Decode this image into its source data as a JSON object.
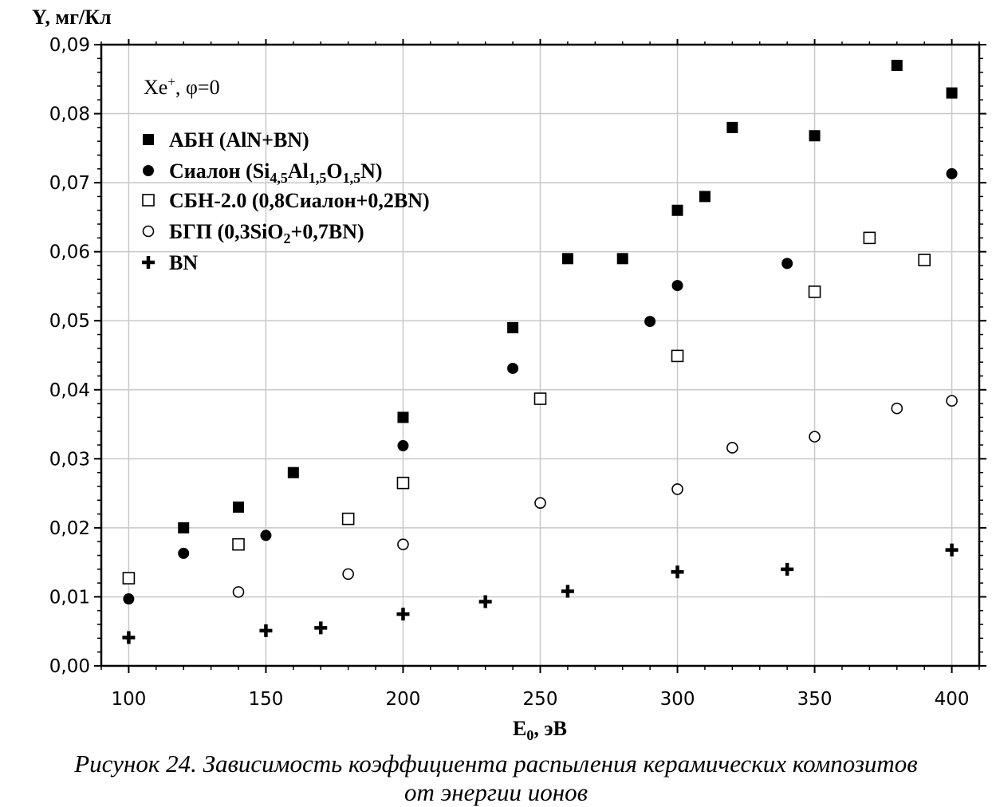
{
  "chart_data": {
    "type": "scatter",
    "ylabel": "Y, мг/Кл",
    "xlabel": "E0, эВ",
    "xlim": [
      90,
      410
    ],
    "ylim": [
      0,
      0.09
    ],
    "x_ticks": [
      100,
      150,
      200,
      250,
      300,
      350,
      400
    ],
    "x_tick_labels": [
      "100",
      "150",
      "200",
      "250",
      "300",
      "350",
      "400"
    ],
    "y_ticks": [
      0,
      0.01,
      0.02,
      0.03,
      0.04,
      0.05,
      0.06,
      0.07,
      0.08,
      0.09
    ],
    "y_tick_labels": [
      "0,00",
      "0,01",
      "0,02",
      "0,03",
      "0,04",
      "0,05",
      "0,06",
      "0,07",
      "0,08",
      "0,09"
    ],
    "grid": true,
    "legend_position": "top-left",
    "annotation": "Xe+, φ=0",
    "series": [
      {
        "name": "АБН (AlN+BN)",
        "marker": "filled-square",
        "x": [
          120,
          140,
          160,
          200,
          240,
          260,
          280,
          300,
          310,
          320,
          350,
          380,
          400
        ],
        "y": [
          0.02,
          0.023,
          0.028,
          0.036,
          0.049,
          0.059,
          0.059,
          0.066,
          0.068,
          0.078,
          0.0768,
          0.087,
          0.083
        ]
      },
      {
        "name": "Сиалон (Si4,5Al1,5O1,5N)",
        "marker": "filled-circle",
        "x": [
          100,
          120,
          150,
          200,
          240,
          290,
          300,
          340,
          400
        ],
        "y": [
          0.0097,
          0.0163,
          0.0189,
          0.0319,
          0.0431,
          0.0499,
          0.0551,
          0.0583,
          0.0713
        ]
      },
      {
        "name": "СБН-2.0 (0,8Сиалон+0,2BN)",
        "marker": "open-square",
        "x": [
          100,
          140,
          180,
          200,
          250,
          300,
          350,
          370,
          390
        ],
        "y": [
          0.0127,
          0.0176,
          0.0213,
          0.0265,
          0.0387,
          0.0449,
          0.0542,
          0.062,
          0.0588
        ]
      },
      {
        "name": "БГП (0,3SiO2+0,7BN)",
        "marker": "open-circle",
        "x": [
          140,
          180,
          200,
          250,
          300,
          320,
          350,
          380,
          400
        ],
        "y": [
          0.0107,
          0.0133,
          0.0176,
          0.0236,
          0.0256,
          0.0316,
          0.0332,
          0.0373,
          0.0384
        ]
      },
      {
        "name": "BN",
        "marker": "plus",
        "x": [
          100,
          150,
          170,
          200,
          230,
          260,
          300,
          340,
          400
        ],
        "y": [
          0.0041,
          0.0051,
          0.0055,
          0.0075,
          0.0093,
          0.0108,
          0.0136,
          0.014,
          0.0168
        ]
      }
    ]
  },
  "legend": {
    "annotation_base": "Xe",
    "annotation_sup": "+",
    "annotation_rest": ", φ=0",
    "items": [
      {
        "parts": [
          {
            "t": "АБН (AlN+BN)",
            "sub": false
          }
        ]
      },
      {
        "parts": [
          {
            "t": "Сиалон (Si",
            "sub": false
          },
          {
            "t": "4,5",
            "sub": true
          },
          {
            "t": "Al",
            "sub": false
          },
          {
            "t": "1,5",
            "sub": true
          },
          {
            "t": "O",
            "sub": false
          },
          {
            "t": "1,5",
            "sub": true
          },
          {
            "t": "N)",
            "sub": false
          }
        ]
      },
      {
        "parts": [
          {
            "t": "СБН-2.0 (0,8Сиалон+0,2BN)",
            "sub": false
          }
        ]
      },
      {
        "parts": [
          {
            "t": "БГП (0,3SiO",
            "sub": false
          },
          {
            "t": "2",
            "sub": true
          },
          {
            "t": "+0,7BN)",
            "sub": false
          }
        ]
      },
      {
        "parts": [
          {
            "t": "BN",
            "sub": false
          }
        ]
      }
    ]
  },
  "axis_titles": {
    "y_title": "Y, мг/Кл",
    "x_title_base": "E",
    "x_title_sub": "0",
    "x_title_rest": ", эВ"
  },
  "caption": {
    "line1": "Рисунок 24. Зависимость коэффициента распыления керамических композитов",
    "line2": "от энергии ионов"
  }
}
